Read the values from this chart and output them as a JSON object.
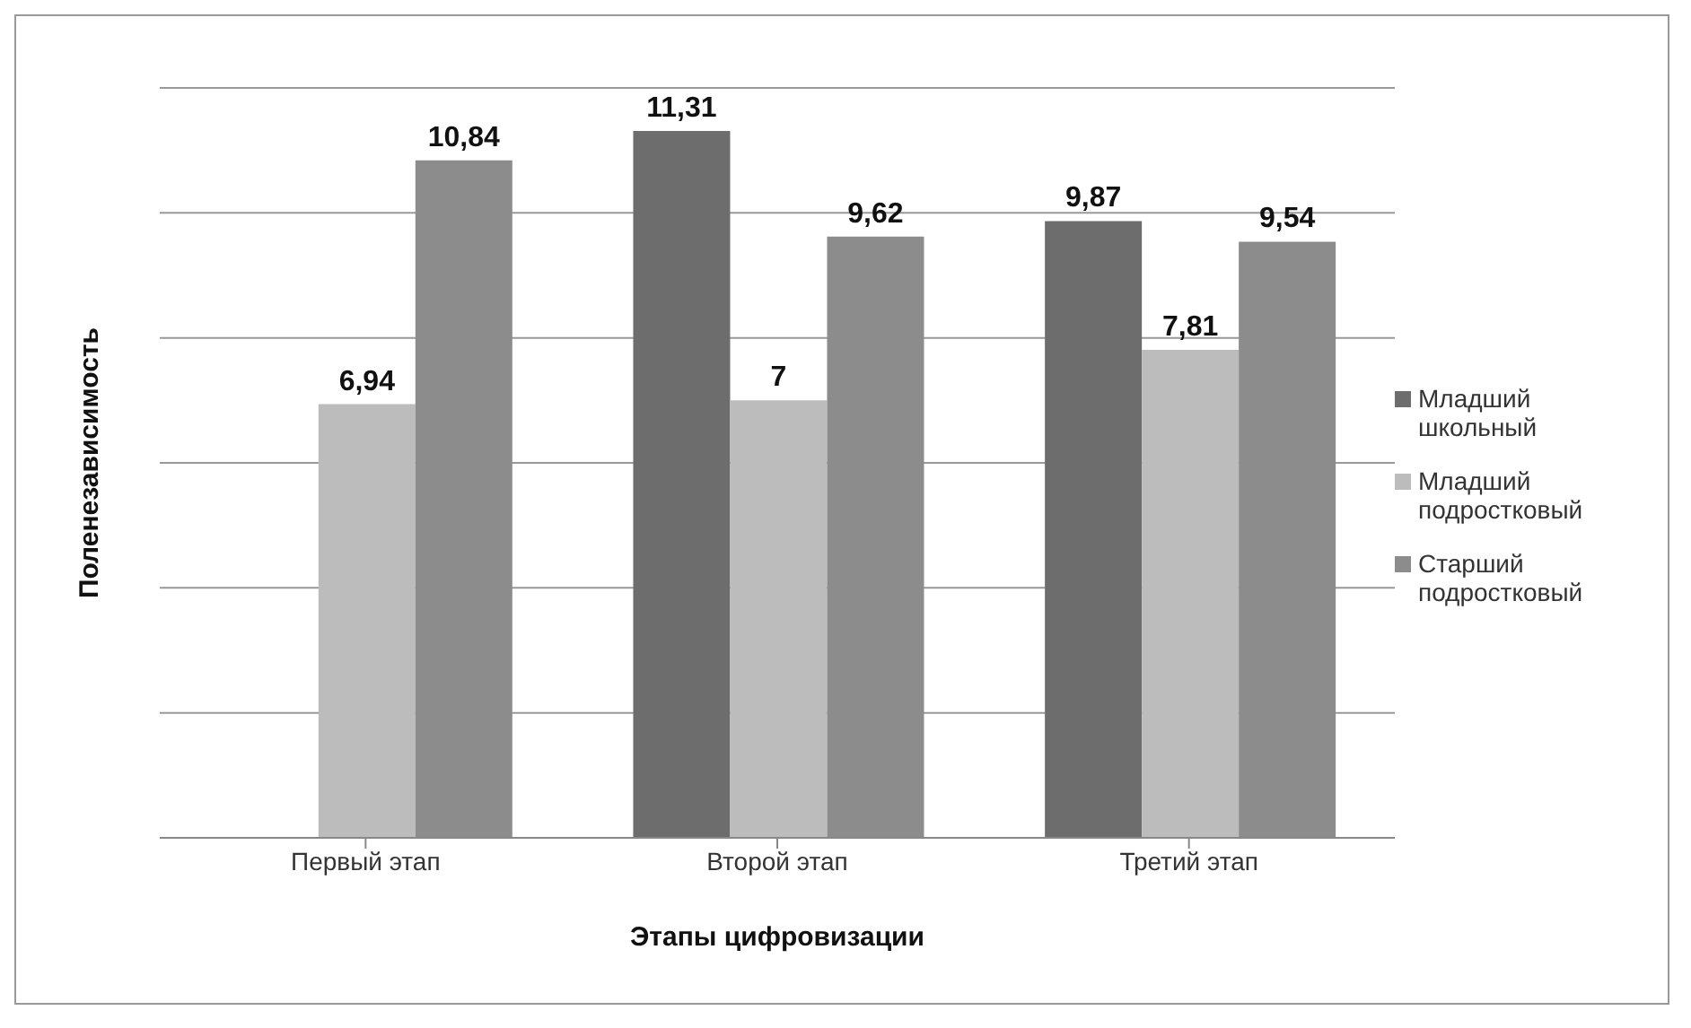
{
  "chart_data": {
    "type": "bar",
    "xlabel": "Этапы цифровизации",
    "ylabel": "Поленезависимость",
    "categories": [
      "Первый этап",
      "Второй этап",
      "Третий этап"
    ],
    "series": [
      {
        "name": "Младший школьный",
        "color": "#6d6d6d",
        "values": [
          null,
          11.31,
          9.87
        ],
        "value_labels": [
          null,
          "11,31",
          "9,87"
        ]
      },
      {
        "name": "Младший подростковый",
        "color": "#bcbcbc",
        "values": [
          6.94,
          7,
          7.81
        ],
        "value_labels": [
          "6,94",
          "7",
          "7,81"
        ]
      },
      {
        "name": "Старший подростковый",
        "color": "#8c8c8c",
        "values": [
          10.84,
          9.62,
          9.54
        ],
        "value_labels": [
          "10,84",
          "9,62",
          "9,54"
        ]
      }
    ],
    "tick_labels": "x",
    "grid": "y",
    "legend": "right"
  }
}
